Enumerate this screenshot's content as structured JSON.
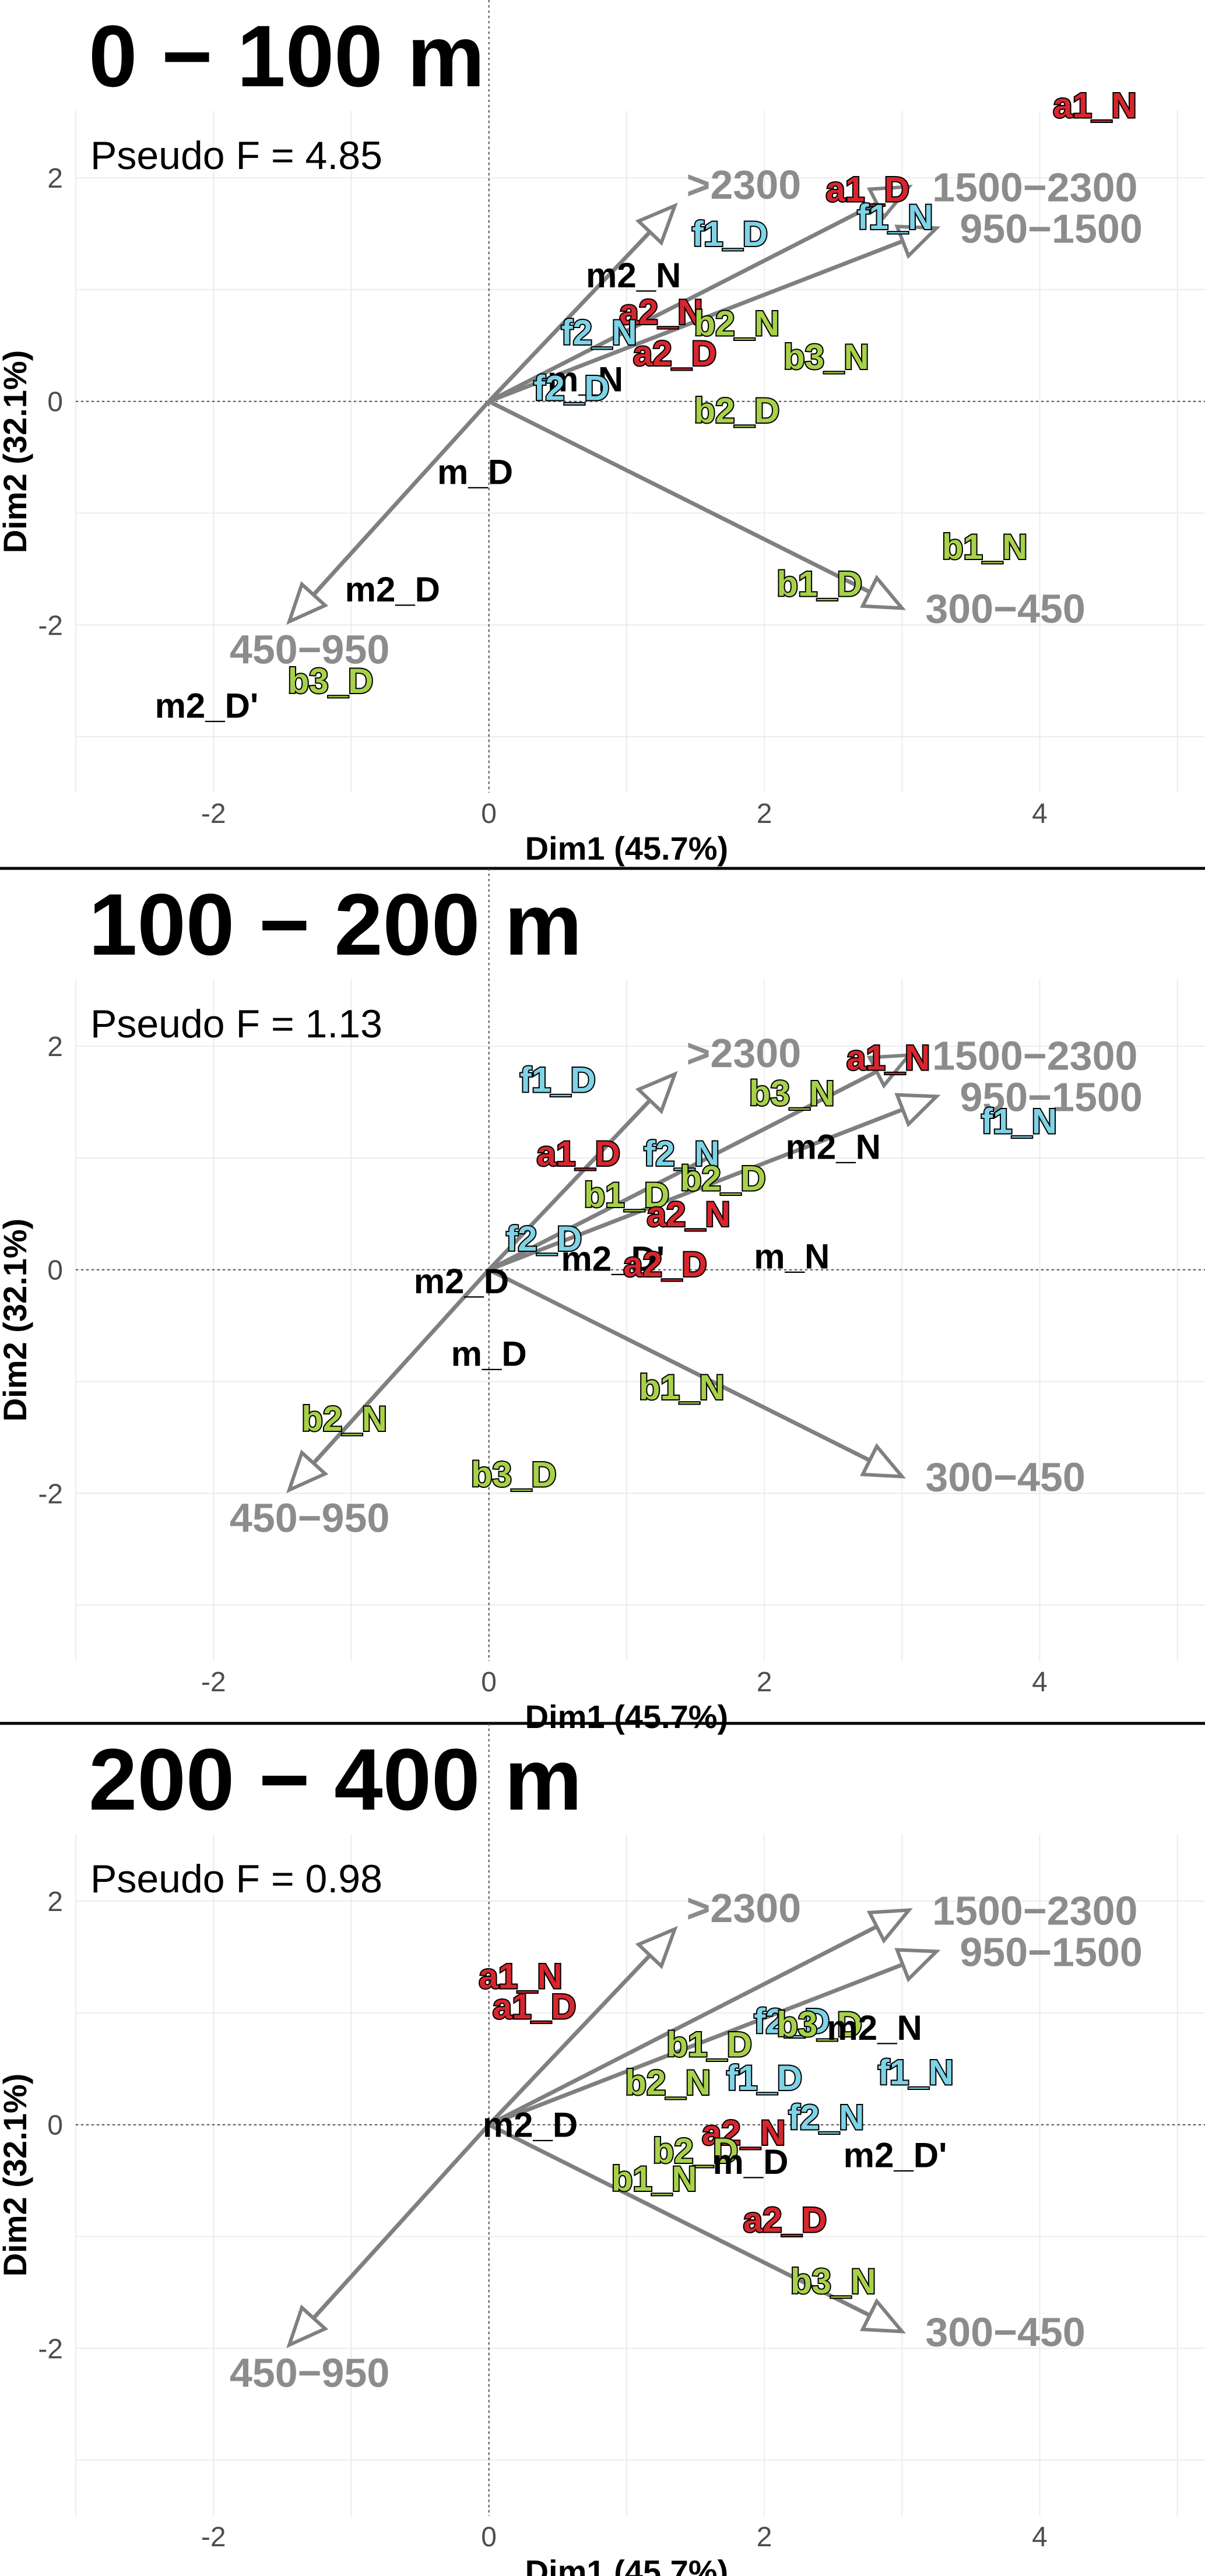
{
  "axes": {
    "xlabel": "Dim1 (45.7%)",
    "ylabel": "Dim2 (32.1%)",
    "xlim": [
      -3,
      5.2
    ],
    "ylim": [
      -3.5,
      2.6
    ],
    "xticks": [
      -2,
      0,
      2,
      4
    ],
    "yticks": [
      -2,
      0,
      2
    ]
  },
  "colors": {
    "a": "#d7262e",
    "b": "#a8d14a",
    "f": "#7fd3e6",
    "m": "#000000",
    "vector": "#808080"
  },
  "chart_data": [
    {
      "type": "scatter",
      "title": "0 − 100 m",
      "subtitle": "Pseudo F = 4.85",
      "grid": true,
      "vectors": [
        {
          "label": ">2300",
          "x": 1.35,
          "y": 1.75
        },
        {
          "label": "1500−2300",
          "x": 3.05,
          "y": 1.92
        },
        {
          "label": "950−1500",
          "x": 3.25,
          "y": 1.55
        },
        {
          "label": "300−450",
          "x": 3.0,
          "y": -1.85
        },
        {
          "label": "450−950",
          "x": -1.45,
          "y": -1.97
        }
      ],
      "points": [
        {
          "label": "a1_N",
          "x": 4.4,
          "y": 2.65,
          "group": "a"
        },
        {
          "label": "a1_D",
          "x": 2.75,
          "y": 1.9,
          "group": "a"
        },
        {
          "label": "f1_N",
          "x": 2.95,
          "y": 1.65,
          "group": "f"
        },
        {
          "label": "f1_D",
          "x": 1.75,
          "y": 1.5,
          "group": "f"
        },
        {
          "label": "m2_N",
          "x": 1.05,
          "y": 1.13,
          "group": "m"
        },
        {
          "label": "a2_N",
          "x": 1.25,
          "y": 0.8,
          "group": "a"
        },
        {
          "label": "b2_N",
          "x": 1.8,
          "y": 0.7,
          "group": "b"
        },
        {
          "label": "f2_N",
          "x": 0.8,
          "y": 0.62,
          "group": "f"
        },
        {
          "label": "a2_D",
          "x": 1.35,
          "y": 0.43,
          "group": "a"
        },
        {
          "label": "b3_N",
          "x": 2.45,
          "y": 0.4,
          "group": "b"
        },
        {
          "label": "m_N",
          "x": 0.7,
          "y": 0.2,
          "group": "m"
        },
        {
          "label": "f2_D",
          "x": 0.6,
          "y": 0.12,
          "group": "f"
        },
        {
          "label": "b2_D",
          "x": 1.8,
          "y": -0.08,
          "group": "b"
        },
        {
          "label": "m_D",
          "x": -0.1,
          "y": -0.63,
          "group": "m"
        },
        {
          "label": "b1_N",
          "x": 3.6,
          "y": -1.3,
          "group": "b"
        },
        {
          "label": "b1_D",
          "x": 2.4,
          "y": -1.63,
          "group": "b"
        },
        {
          "label": "m2_D",
          "x": -0.7,
          "y": -1.68,
          "group": "m"
        },
        {
          "label": "b3_D",
          "x": -1.15,
          "y": -2.5,
          "group": "b"
        },
        {
          "label": "m2_D'",
          "x": -2.05,
          "y": -2.72,
          "group": "m"
        }
      ]
    },
    {
      "type": "scatter",
      "title": "100 − 200 m",
      "subtitle": "Pseudo F = 1.13",
      "grid": true,
      "vectors": [
        {
          "label": ">2300",
          "x": 1.35,
          "y": 1.75
        },
        {
          "label": "1500−2300",
          "x": 3.05,
          "y": 1.92
        },
        {
          "label": "950−1500",
          "x": 3.25,
          "y": 1.55
        },
        {
          "label": "300−450",
          "x": 3.0,
          "y": -1.85
        },
        {
          "label": "450−950",
          "x": -1.45,
          "y": -1.97
        }
      ],
      "points": [
        {
          "label": "a1_N",
          "x": 2.9,
          "y": 1.9,
          "group": "a"
        },
        {
          "label": "f1_D",
          "x": 0.5,
          "y": 1.7,
          "group": "f"
        },
        {
          "label": "b3_N",
          "x": 2.2,
          "y": 1.58,
          "group": "b"
        },
        {
          "label": "f1_N",
          "x": 3.85,
          "y": 1.33,
          "group": "f"
        },
        {
          "label": "m2_N",
          "x": 2.5,
          "y": 1.1,
          "group": "m"
        },
        {
          "label": "a1_D",
          "x": 0.65,
          "y": 1.04,
          "group": "a"
        },
        {
          "label": "f2_N",
          "x": 1.4,
          "y": 1.04,
          "group": "f"
        },
        {
          "label": "b2_D",
          "x": 1.7,
          "y": 0.82,
          "group": "b"
        },
        {
          "label": "b1_D",
          "x": 1.0,
          "y": 0.67,
          "group": "b"
        },
        {
          "label": "a2_N",
          "x": 1.45,
          "y": 0.5,
          "group": "a"
        },
        {
          "label": "f2_D",
          "x": 0.4,
          "y": 0.28,
          "group": "f"
        },
        {
          "label": "m2_D'",
          "x": 0.9,
          "y": 0.1,
          "group": "m"
        },
        {
          "label": "a2_D",
          "x": 1.28,
          "y": 0.05,
          "group": "a"
        },
        {
          "label": "m_N",
          "x": 2.2,
          "y": 0.12,
          "group": "m"
        },
        {
          "label": "m2_D",
          "x": -0.2,
          "y": -0.1,
          "group": "m"
        },
        {
          "label": "m_D",
          "x": 0.0,
          "y": -0.75,
          "group": "m"
        },
        {
          "label": "b1_N",
          "x": 1.4,
          "y": -1.05,
          "group": "b"
        },
        {
          "label": "b2_N",
          "x": -1.05,
          "y": -1.33,
          "group": "b"
        },
        {
          "label": "b3_D",
          "x": 0.18,
          "y": -1.83,
          "group": "b"
        }
      ]
    },
    {
      "type": "scatter",
      "title": "200 − 400 m",
      "subtitle": "Pseudo F = 0.98",
      "grid": true,
      "vectors": [
        {
          "label": ">2300",
          "x": 1.35,
          "y": 1.75
        },
        {
          "label": "1500−2300",
          "x": 3.05,
          "y": 1.92
        },
        {
          "label": "950−1500",
          "x": 3.25,
          "y": 1.55
        },
        {
          "label": "300−450",
          "x": 3.0,
          "y": -1.85
        },
        {
          "label": "450−950",
          "x": -1.45,
          "y": -1.97
        }
      ],
      "points": [
        {
          "label": "a1_N",
          "x": 0.23,
          "y": 1.33,
          "group": "a"
        },
        {
          "label": "a1_D",
          "x": 0.33,
          "y": 1.06,
          "group": "a"
        },
        {
          "label": "f2_D",
          "x": 2.2,
          "y": 0.93,
          "group": "f"
        },
        {
          "label": "b3_D",
          "x": 2.4,
          "y": 0.9,
          "group": "b"
        },
        {
          "label": "m2_N",
          "x": 2.8,
          "y": 0.87,
          "group": "m"
        },
        {
          "label": "b1_D",
          "x": 1.6,
          "y": 0.72,
          "group": "b"
        },
        {
          "label": "f1_N",
          "x": 3.1,
          "y": 0.47,
          "group": "f"
        },
        {
          "label": "b2_N",
          "x": 1.3,
          "y": 0.38,
          "group": "b"
        },
        {
          "label": "f1_D",
          "x": 2.0,
          "y": 0.42,
          "group": "f"
        },
        {
          "label": "m2_D",
          "x": 0.3,
          "y": 0.0,
          "group": "m"
        },
        {
          "label": "f2_N",
          "x": 2.45,
          "y": 0.07,
          "group": "f"
        },
        {
          "label": "a2_N",
          "x": 1.85,
          "y": -0.07,
          "group": "a"
        },
        {
          "label": "b2_D",
          "x": 1.5,
          "y": -0.23,
          "group": "b"
        },
        {
          "label": "m_D",
          "x": 1.9,
          "y": -0.33,
          "group": "m"
        },
        {
          "label": "m2_D'",
          "x": 2.95,
          "y": -0.27,
          "group": "m"
        },
        {
          "label": "b1_N",
          "x": 1.2,
          "y": -0.48,
          "group": "b"
        },
        {
          "label": "a2_D",
          "x": 2.15,
          "y": -0.85,
          "group": "a"
        },
        {
          "label": "b3_N",
          "x": 2.5,
          "y": -1.4,
          "group": "b"
        }
      ]
    }
  ]
}
